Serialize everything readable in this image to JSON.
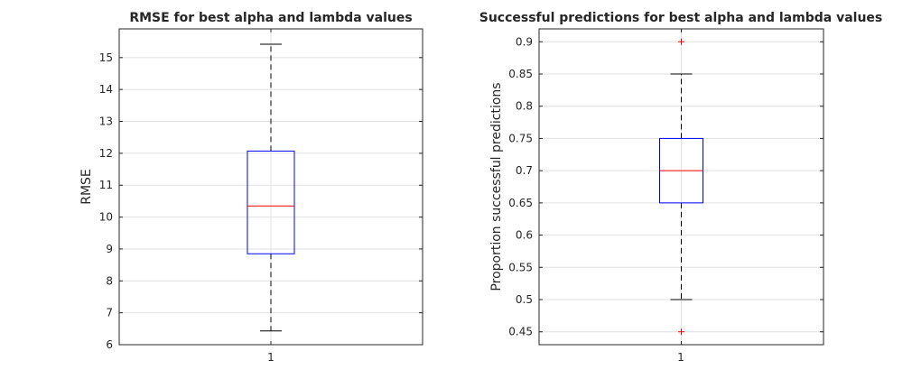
{
  "chart_data": [
    {
      "type": "box",
      "title": "RMSE for best alpha and lambda values",
      "xlabel": "",
      "ylabel": "RMSE",
      "categories": [
        "1"
      ],
      "ylim": [
        6,
        15.9
      ],
      "yticks": [
        6,
        7,
        8,
        9,
        10,
        11,
        12,
        13,
        14,
        15
      ],
      "grid": true,
      "box": {
        "whisker_low": 6.43,
        "q1": 8.85,
        "median": 10.35,
        "q3": 12.07,
        "whisker_high": 15.42
      },
      "outliers": [],
      "colors": {
        "box": "#0000ff",
        "median": "#ff0000",
        "whisker": "#000000",
        "grid": "#e0e0e0"
      }
    },
    {
      "type": "box",
      "title": "Successful predictions for best alpha and lambda values",
      "xlabel": "",
      "ylabel": "Proportion successful predictions",
      "categories": [
        "1"
      ],
      "ylim": [
        0.43,
        0.92
      ],
      "yticks": [
        0.45,
        0.5,
        0.55,
        0.6,
        0.65,
        0.7,
        0.75,
        0.8,
        0.85,
        0.9
      ],
      "grid": true,
      "box": {
        "whisker_low": 0.5,
        "q1": 0.65,
        "median": 0.7,
        "q3": 0.75,
        "whisker_high": 0.85
      },
      "outliers": [
        0.45,
        0.9
      ],
      "colors": {
        "box": "#0000ff",
        "median": "#ff0000",
        "whisker": "#000000",
        "outlier": "#ff0000",
        "grid": "#e0e0e0"
      }
    }
  ]
}
